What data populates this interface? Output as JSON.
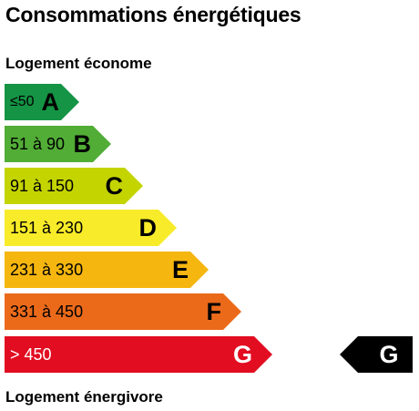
{
  "title": "Consommations énergétiques",
  "label_top": "Logement économe",
  "label_bottom": "Logement énergivore",
  "classes": [
    {
      "letter": "A",
      "range": "≤50",
      "color": "#159445",
      "text_color": "#000000"
    },
    {
      "letter": "B",
      "range": "51 à 90",
      "color": "#52ad36",
      "text_color": "#000000"
    },
    {
      "letter": "C",
      "range": "91 à 150",
      "color": "#c4d400",
      "text_color": "#000000"
    },
    {
      "letter": "D",
      "range": "151 à 230",
      "color": "#f8eb29",
      "text_color": "#000000"
    },
    {
      "letter": "E",
      "range": "231 à 330",
      "color": "#f5b60f",
      "text_color": "#000000"
    },
    {
      "letter": "F",
      "range": "331 à 450",
      "color": "#eb6a1a",
      "text_color": "#000000"
    },
    {
      "letter": "G",
      "range": "> 450",
      "color": "#e20d21",
      "text_color": "#ffffff"
    }
  ],
  "current_class": {
    "letter": "G",
    "color": "#000000"
  }
}
